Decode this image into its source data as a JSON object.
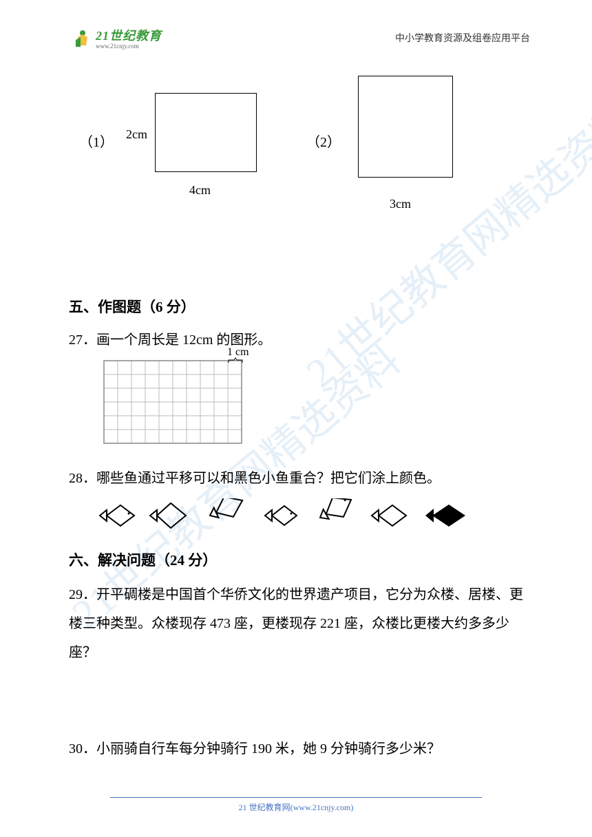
{
  "header": {
    "logo_text": "21世纪教育",
    "logo_url": "www.21cnjy.com",
    "right_text": "中小学教育资源及组卷应用平台"
  },
  "figures": {
    "fig1_num": "（1）",
    "fig1_height": "2cm",
    "fig1_width": "4cm",
    "fig2_num": "（2）",
    "fig2_width": "3cm"
  },
  "section5": {
    "title": "五、作图题（6 分）",
    "q27": "27．画一个周长是 12cm 的图形。",
    "grid_label": "1 cm",
    "grid": {
      "cols": 10,
      "rows": 6,
      "cell_size": 20,
      "border_color": "#bbbbbb"
    },
    "q28": "28．哪些鱼通过平移可以和黑色小鱼重合？把它们涂上颜色。"
  },
  "section6": {
    "title": "六、解决问题（24 分）",
    "q29": "29．开平碉楼是中国首个华侨文化的世界遗产项目，它分为众楼、居楼、更楼三种类型。众楼现存 473 座，更楼现存 221 座，众楼比更楼大约多多少座？",
    "q30": "30．小丽骑自行车每分钟骑行 190 米，她 9 分钟骑行多少米？"
  },
  "footer": {
    "text": "21 世纪教育网(www.21cnjy.com)"
  },
  "watermark": {
    "text": "21世纪教育网精选资料"
  },
  "colors": {
    "logo_green": "#3a9b3a",
    "footer_blue": "#4472c4",
    "watermark_blue": "#5a9bd4",
    "text": "#000000"
  }
}
